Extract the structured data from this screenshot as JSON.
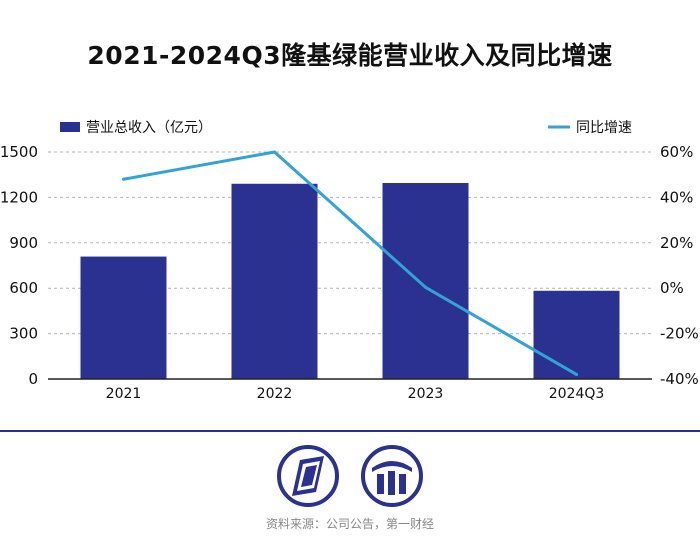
{
  "chart_data": {
    "type": "bar",
    "title": "2021-2024Q3隆基绿能营业收入及同比增速",
    "categories": [
      "2021",
      "2022",
      "2023",
      "2024Q3"
    ],
    "series": [
      {
        "name": "营业总收入（亿元）",
        "type": "bar",
        "axis": "left",
        "color": "#2b3190",
        "values": [
          809,
          1290,
          1295,
          583
        ]
      },
      {
        "name": "同比增速",
        "type": "line",
        "axis": "right",
        "color": "#31a3d6",
        "values": [
          48,
          60,
          0.4,
          -38
        ]
      }
    ],
    "y_left": {
      "min": 0,
      "max": 1500,
      "ticks": [
        0,
        300,
        600,
        900,
        1200,
        1500
      ],
      "tick_labels": [
        "0",
        "300",
        "600",
        "900",
        "1200",
        "1500"
      ]
    },
    "y_right": {
      "min": -40,
      "max": 60,
      "ticks": [
        -40,
        -20,
        0,
        20,
        40,
        60
      ],
      "tick_labels": [
        "-40%",
        "-20%",
        "0%",
        "20%",
        "40%",
        "60%"
      ]
    },
    "grid": true,
    "legend_position": "top"
  },
  "footer": {
    "source": "资料来源：公司公告，第一财经",
    "logo_left_icon": "slanted-panel-logo-icon",
    "logo_right_icon": "bars-logo-icon"
  }
}
